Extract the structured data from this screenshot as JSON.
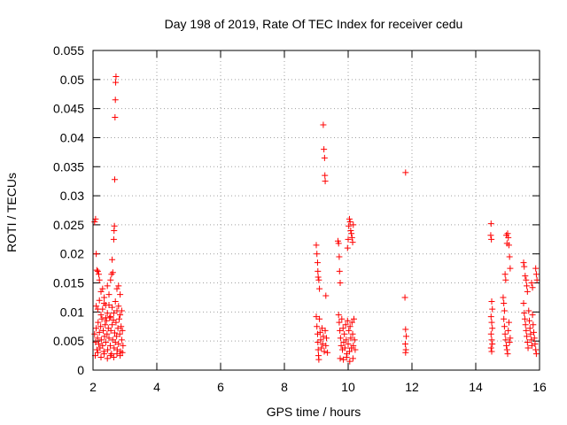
{
  "chart_data": {
    "type": "scatter",
    "title": "Day 198 of 2019, Rate Of TEC Index for receiver cedu",
    "xlabel": "GPS time / hours",
    "ylabel": "ROTI / TECUs",
    "xlim": [
      2,
      16
    ],
    "ylim": [
      0,
      0.055
    ],
    "xticks": [
      2,
      4,
      6,
      8,
      10,
      12,
      14,
      16
    ],
    "xtick_labels": [
      "2",
      "4",
      "6",
      "8",
      "10",
      "12",
      "14",
      "16"
    ],
    "yticks": [
      0,
      0.005,
      0.01,
      0.015,
      0.02,
      0.025,
      0.03,
      0.035,
      0.04,
      0.045,
      0.05,
      0.055
    ],
    "ytick_labels": [
      "0",
      "0.005",
      "0.01",
      "0.015",
      "0.02",
      "0.025",
      "0.03",
      "0.035",
      "0.04",
      "0.045",
      "0.05",
      "0.055"
    ],
    "grid": true,
    "marker": "+",
    "marker_color": "#ff0000",
    "series": [
      {
        "name": "ROTI",
        "points": [
          [
            2.05,
            0.0255
          ],
          [
            2.08,
            0.026
          ],
          [
            2.1,
            0.02
          ],
          [
            2.12,
            0.0172
          ],
          [
            2.15,
            0.017
          ],
          [
            2.18,
            0.0165
          ],
          [
            2.2,
            0.0155
          ],
          [
            2.25,
            0.0135
          ],
          [
            2.3,
            0.014
          ],
          [
            2.35,
            0.0125
          ],
          [
            2.4,
            0.0112
          ],
          [
            2.45,
            0.0145
          ],
          [
            2.5,
            0.013
          ],
          [
            2.55,
            0.0155
          ],
          [
            2.58,
            0.0165
          ],
          [
            2.6,
            0.019
          ],
          [
            2.62,
            0.0168
          ],
          [
            2.65,
            0.0225
          ],
          [
            2.66,
            0.024
          ],
          [
            2.67,
            0.0248
          ],
          [
            2.68,
            0.0328
          ],
          [
            2.69,
            0.0435
          ],
          [
            2.7,
            0.0465
          ],
          [
            2.71,
            0.0495
          ],
          [
            2.72,
            0.0505
          ],
          [
            2.75,
            0.014
          ],
          [
            2.8,
            0.0145
          ],
          [
            2.85,
            0.013
          ],
          [
            2.1,
            0.011
          ],
          [
            2.15,
            0.0105
          ],
          [
            2.2,
            0.012
          ],
          [
            2.25,
            0.0095
          ],
          [
            2.3,
            0.0105
          ],
          [
            2.35,
            0.0115
          ],
          [
            2.4,
            0.009
          ],
          [
            2.45,
            0.0098
          ],
          [
            2.5,
            0.0112
          ],
          [
            2.55,
            0.0092
          ],
          [
            2.6,
            0.0108
          ],
          [
            2.65,
            0.0098
          ],
          [
            2.7,
            0.0118
          ],
          [
            2.75,
            0.0102
          ],
          [
            2.8,
            0.011
          ],
          [
            2.85,
            0.0095
          ],
          [
            2.9,
            0.0102
          ],
          [
            2.05,
            0.0062
          ],
          [
            2.08,
            0.0048
          ],
          [
            2.1,
            0.0072
          ],
          [
            2.12,
            0.0035
          ],
          [
            2.14,
            0.0055
          ],
          [
            2.16,
            0.0082
          ],
          [
            2.18,
            0.0045
          ],
          [
            2.2,
            0.0065
          ],
          [
            2.22,
            0.0038
          ],
          [
            2.24,
            0.0075
          ],
          [
            2.26,
            0.0052
          ],
          [
            2.28,
            0.0088
          ],
          [
            2.3,
            0.0042
          ],
          [
            2.32,
            0.0068
          ],
          [
            2.34,
            0.0032
          ],
          [
            2.36,
            0.0058
          ],
          [
            2.38,
            0.0078
          ],
          [
            2.4,
            0.0048
          ],
          [
            2.42,
            0.0085
          ],
          [
            2.44,
            0.0062
          ],
          [
            2.46,
            0.0035
          ],
          [
            2.48,
            0.0072
          ],
          [
            2.5,
            0.0055
          ],
          [
            2.52,
            0.009
          ],
          [
            2.54,
            0.0042
          ],
          [
            2.56,
            0.0068
          ],
          [
            2.58,
            0.0028
          ],
          [
            2.6,
            0.0078
          ],
          [
            2.62,
            0.0052
          ],
          [
            2.64,
            0.0086
          ],
          [
            2.66,
            0.0038
          ],
          [
            2.68,
            0.0064
          ],
          [
            2.7,
            0.0048
          ],
          [
            2.72,
            0.0082
          ],
          [
            2.74,
            0.0058
          ],
          [
            2.76,
            0.0035
          ],
          [
            2.78,
            0.0072
          ],
          [
            2.8,
            0.0045
          ],
          [
            2.82,
            0.0088
          ],
          [
            2.84,
            0.0062
          ],
          [
            2.86,
            0.0032
          ],
          [
            2.88,
            0.0075
          ],
          [
            2.9,
            0.0052
          ],
          [
            2.92,
            0.0068
          ],
          [
            2.94,
            0.0042
          ],
          [
            2.07,
            0.0025
          ],
          [
            2.15,
            0.003
          ],
          [
            2.25,
            0.0022
          ],
          [
            2.35,
            0.0028
          ],
          [
            2.45,
            0.002
          ],
          [
            2.55,
            0.0025
          ],
          [
            2.65,
            0.0022
          ],
          [
            2.75,
            0.0028
          ],
          [
            2.85,
            0.0025
          ],
          [
            2.92,
            0.003
          ],
          [
            9.0,
            0.0215
          ],
          [
            9.02,
            0.02
          ],
          [
            9.04,
            0.0185
          ],
          [
            9.05,
            0.017
          ],
          [
            9.06,
            0.016
          ],
          [
            9.08,
            0.0155
          ],
          [
            9.1,
            0.014
          ],
          [
            9.22,
            0.0422
          ],
          [
            9.24,
            0.038
          ],
          [
            9.26,
            0.0365
          ],
          [
            9.27,
            0.0335
          ],
          [
            9.28,
            0.0325
          ],
          [
            9.3,
            0.0128
          ],
          [
            9.0,
            0.0092
          ],
          [
            9.02,
            0.0075
          ],
          [
            9.04,
            0.0062
          ],
          [
            9.05,
            0.0048
          ],
          [
            9.06,
            0.0035
          ],
          [
            9.07,
            0.0025
          ],
          [
            9.08,
            0.0018
          ],
          [
            9.1,
            0.0088
          ],
          [
            9.12,
            0.0065
          ],
          [
            9.14,
            0.0052
          ],
          [
            9.16,
            0.0038
          ],
          [
            9.18,
            0.0072
          ],
          [
            9.2,
            0.0045
          ],
          [
            9.22,
            0.0058
          ],
          [
            9.25,
            0.0032
          ],
          [
            9.28,
            0.0068
          ],
          [
            9.3,
            0.0042
          ],
          [
            9.32,
            0.0055
          ],
          [
            9.35,
            0.003
          ],
          [
            9.68,
            0.0222
          ],
          [
            9.7,
            0.0218
          ],
          [
            9.72,
            0.0195
          ],
          [
            9.73,
            0.017
          ],
          [
            9.75,
            0.015
          ],
          [
            9.7,
            0.0095
          ],
          [
            9.72,
            0.0082
          ],
          [
            9.74,
            0.0068
          ],
          [
            9.76,
            0.0055
          ],
          [
            9.78,
            0.0042
          ],
          [
            9.8,
            0.0088
          ],
          [
            9.82,
            0.0035
          ],
          [
            9.84,
            0.0072
          ],
          [
            9.86,
            0.0048
          ],
          [
            9.88,
            0.0062
          ],
          [
            9.9,
            0.0038
          ],
          [
            9.92,
            0.0078
          ],
          [
            9.94,
            0.0052
          ],
          [
            9.96,
            0.0028
          ],
          [
            9.98,
            0.0085
          ],
          [
            10.0,
            0.0045
          ],
          [
            10.02,
            0.0068
          ],
          [
            10.04,
            0.0032
          ],
          [
            10.06,
            0.0075
          ],
          [
            10.08,
            0.0055
          ],
          [
            10.1,
            0.0038
          ],
          [
            10.12,
            0.0082
          ],
          [
            10.14,
            0.0062
          ],
          [
            10.16,
            0.0042
          ],
          [
            10.18,
            0.0088
          ],
          [
            10.2,
            0.0052
          ],
          [
            10.22,
            0.0035
          ],
          [
            9.75,
            0.002
          ],
          [
            9.85,
            0.0018
          ],
          [
            9.95,
            0.0022
          ],
          [
            10.05,
            0.0015
          ],
          [
            10.15,
            0.002
          ],
          [
            9.98,
            0.021
          ],
          [
            10.0,
            0.0225
          ],
          [
            10.02,
            0.0248
          ],
          [
            10.04,
            0.026
          ],
          [
            10.06,
            0.0255
          ],
          [
            10.08,
            0.024
          ],
          [
            10.1,
            0.0235
          ],
          [
            10.12,
            0.0228
          ],
          [
            10.14,
            0.022
          ],
          [
            10.16,
            0.025
          ],
          [
            11.8,
            0.034
          ],
          [
            11.78,
            0.0125
          ],
          [
            11.8,
            0.007
          ],
          [
            11.82,
            0.0058
          ],
          [
            11.79,
            0.0045
          ],
          [
            11.81,
            0.0035
          ],
          [
            11.8,
            0.003
          ],
          [
            14.48,
            0.0252
          ],
          [
            14.47,
            0.0232
          ],
          [
            14.49,
            0.0225
          ],
          [
            14.5,
            0.0118
          ],
          [
            14.52,
            0.0105
          ],
          [
            14.48,
            0.0092
          ],
          [
            14.5,
            0.0082
          ],
          [
            14.52,
            0.0072
          ],
          [
            14.48,
            0.0062
          ],
          [
            14.5,
            0.0052
          ],
          [
            14.52,
            0.0045
          ],
          [
            14.48,
            0.0038
          ],
          [
            14.5,
            0.0032
          ],
          [
            14.86,
            0.0125
          ],
          [
            14.88,
            0.0115
          ],
          [
            14.9,
            0.0102
          ],
          [
            14.92,
            0.0165
          ],
          [
            14.94,
            0.0155
          ],
          [
            14.96,
            0.0232
          ],
          [
            14.98,
            0.0218
          ],
          [
            15.0,
            0.0235
          ],
          [
            15.02,
            0.0228
          ],
          [
            15.04,
            0.0215
          ],
          [
            15.06,
            0.0195
          ],
          [
            15.08,
            0.0175
          ],
          [
            14.88,
            0.0088
          ],
          [
            14.9,
            0.0075
          ],
          [
            14.92,
            0.0062
          ],
          [
            14.94,
            0.0052
          ],
          [
            14.96,
            0.0042
          ],
          [
            14.98,
            0.0035
          ],
          [
            15.0,
            0.0028
          ],
          [
            15.02,
            0.0068
          ],
          [
            15.04,
            0.0082
          ],
          [
            15.06,
            0.0048
          ],
          [
            15.08,
            0.0055
          ],
          [
            15.5,
            0.0185
          ],
          [
            15.52,
            0.0178
          ],
          [
            15.55,
            0.0162
          ],
          [
            15.58,
            0.0155
          ],
          [
            15.6,
            0.0145
          ],
          [
            15.62,
            0.0135
          ],
          [
            15.5,
            0.0115
          ],
          [
            15.52,
            0.0098
          ],
          [
            15.54,
            0.0088
          ],
          [
            15.56,
            0.0078
          ],
          [
            15.58,
            0.0068
          ],
          [
            15.6,
            0.0058
          ],
          [
            15.62,
            0.0048
          ],
          [
            15.64,
            0.0038
          ],
          [
            15.66,
            0.0102
          ],
          [
            15.68,
            0.0085
          ],
          [
            15.7,
            0.0072
          ],
          [
            15.72,
            0.0062
          ],
          [
            15.74,
            0.0052
          ],
          [
            15.76,
            0.0042
          ],
          [
            15.78,
            0.0095
          ],
          [
            15.8,
            0.0078
          ],
          [
            15.82,
            0.0065
          ],
          [
            15.84,
            0.0055
          ],
          [
            15.86,
            0.0045
          ],
          [
            15.88,
            0.0035
          ],
          [
            15.9,
            0.0028
          ],
          [
            15.75,
            0.015
          ],
          [
            15.78,
            0.0142
          ],
          [
            15.88,
            0.0175
          ],
          [
            15.9,
            0.0165
          ],
          [
            15.92,
            0.0155
          ]
        ]
      }
    ]
  }
}
